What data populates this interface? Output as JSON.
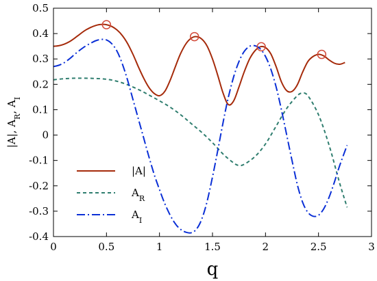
{
  "chart_data": {
    "type": "line",
    "xlabel": "q",
    "ylabel": "|A|, A_R, A_I",
    "xlim": [
      0,
      3
    ],
    "ylim": [
      -0.4,
      0.5
    ],
    "xticks": [
      "0",
      "0.5",
      "1",
      "1.5",
      "2",
      "2.5",
      "3"
    ],
    "yticks": [
      "0.5",
      "0.4",
      "0.3",
      "0.2",
      "0.1",
      "0",
      "-0.1",
      "-0.2",
      "-0.3",
      "-0.4"
    ],
    "grid": false,
    "legend_position": "bottom-left",
    "series": [
      {
        "name": "|A|",
        "base": "|A|",
        "sub": "",
        "color": "#a52a0a",
        "dash": "",
        "x": [
          0,
          0.05,
          0.1,
          0.15,
          0.2,
          0.25,
          0.3,
          0.35,
          0.4,
          0.45,
          0.5,
          0.55,
          0.6,
          0.65,
          0.7,
          0.75,
          0.8,
          0.85,
          0.9,
          0.95,
          1.0,
          1.05,
          1.1,
          1.15,
          1.2,
          1.25,
          1.3,
          1.35,
          1.4,
          1.45,
          1.5,
          1.55,
          1.6,
          1.65,
          1.7,
          1.75,
          1.8,
          1.85,
          1.9,
          1.95,
          2.0,
          2.05,
          2.1,
          2.15,
          2.2,
          2.25,
          2.3,
          2.35,
          2.4,
          2.45,
          2.5,
          2.55,
          2.6,
          2.65,
          2.7,
          2.75
        ],
        "y": [
          0.35,
          0.352,
          0.358,
          0.368,
          0.382,
          0.398,
          0.413,
          0.424,
          0.432,
          0.436,
          0.435,
          0.428,
          0.414,
          0.392,
          0.36,
          0.318,
          0.27,
          0.225,
          0.188,
          0.164,
          0.155,
          0.172,
          0.215,
          0.27,
          0.322,
          0.36,
          0.382,
          0.388,
          0.378,
          0.35,
          0.3,
          0.235,
          0.165,
          0.12,
          0.135,
          0.19,
          0.25,
          0.3,
          0.332,
          0.348,
          0.345,
          0.32,
          0.27,
          0.21,
          0.175,
          0.172,
          0.198,
          0.248,
          0.29,
          0.31,
          0.318,
          0.312,
          0.296,
          0.283,
          0.279,
          0.286
        ]
      },
      {
        "name": "A_R",
        "base": "A",
        "sub": "R",
        "color": "#2e7d6e",
        "dash": "5,4",
        "x": [
          0,
          0.1,
          0.2,
          0.3,
          0.4,
          0.5,
          0.6,
          0.7,
          0.8,
          0.9,
          1.0,
          1.1,
          1.2,
          1.3,
          1.4,
          1.5,
          1.6,
          1.7,
          1.75,
          1.8,
          1.9,
          2.0,
          2.1,
          2.2,
          2.3,
          2.35,
          2.4,
          2.5,
          2.6,
          2.7,
          2.77
        ],
        "y": [
          0.218,
          0.222,
          0.224,
          0.224,
          0.223,
          0.22,
          0.212,
          0.198,
          0.18,
          0.158,
          0.135,
          0.11,
          0.08,
          0.045,
          0.01,
          -0.03,
          -0.075,
          -0.11,
          -0.12,
          -0.115,
          -0.085,
          -0.035,
          0.035,
          0.105,
          0.155,
          0.165,
          0.155,
          0.08,
          -0.04,
          -0.19,
          -0.285
        ]
      },
      {
        "name": "A_I",
        "base": "A",
        "sub": "I",
        "color": "#0a2fd6",
        "dash": "12,4,2,4",
        "x": [
          0,
          0.05,
          0.1,
          0.15,
          0.2,
          0.25,
          0.3,
          0.35,
          0.4,
          0.45,
          0.5,
          0.55,
          0.6,
          0.65,
          0.7,
          0.75,
          0.8,
          0.85,
          0.9,
          0.95,
          1.0,
          1.05,
          1.1,
          1.15,
          1.2,
          1.25,
          1.3,
          1.35,
          1.4,
          1.45,
          1.5,
          1.55,
          1.6,
          1.65,
          1.7,
          1.75,
          1.8,
          1.85,
          1.9,
          1.95,
          2.0,
          2.05,
          2.1,
          2.15,
          2.2,
          2.25,
          2.3,
          2.35,
          2.4,
          2.45,
          2.5,
          2.55,
          2.6,
          2.65,
          2.7,
          2.77
        ],
        "y": [
          0.27,
          0.275,
          0.285,
          0.3,
          0.318,
          0.335,
          0.35,
          0.362,
          0.372,
          0.377,
          0.375,
          0.36,
          0.33,
          0.28,
          0.215,
          0.14,
          0.065,
          -0.01,
          -0.085,
          -0.155,
          -0.215,
          -0.27,
          -0.315,
          -0.35,
          -0.372,
          -0.383,
          -0.385,
          -0.37,
          -0.33,
          -0.26,
          -0.165,
          -0.06,
          0.05,
          0.15,
          0.23,
          0.29,
          0.33,
          0.35,
          0.352,
          0.34,
          0.31,
          0.26,
          0.19,
          0.1,
          0.0,
          -0.1,
          -0.195,
          -0.265,
          -0.305,
          -0.32,
          -0.316,
          -0.29,
          -0.245,
          -0.185,
          -0.12,
          -0.04
        ]
      }
    ],
    "markers": {
      "shape": "open-circle",
      "color": "#d24a3a",
      "points": [
        {
          "x": 0.5,
          "y": 0.435
        },
        {
          "x": 1.33,
          "y": 0.388
        },
        {
          "x": 1.96,
          "y": 0.348
        },
        {
          "x": 2.53,
          "y": 0.318
        }
      ]
    }
  }
}
